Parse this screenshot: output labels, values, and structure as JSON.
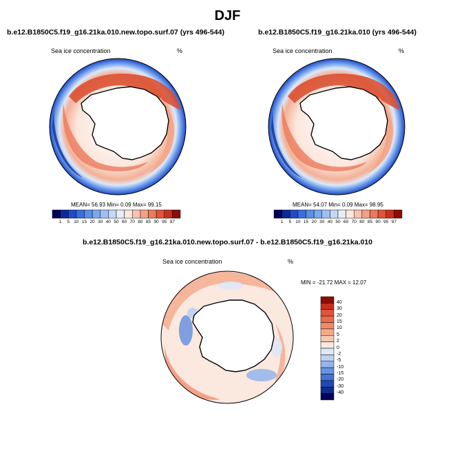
{
  "page": {
    "title": "DJF"
  },
  "panels": [
    {
      "title": "b.e12.B1850C5.f19_g16.21ka.010.new.topo.surf.07 (yrs 496-544)",
      "variable": "Sea ice concentration",
      "units": "%",
      "stats_text": "MEAN=  56.93  Min=   0.09  Max=  99.15"
    },
    {
      "title": "b.e12.B1850C5.f19_g16.21ka.010 (yrs 496-544)",
      "variable": "Sea ice concentration",
      "units": "%",
      "stats_text": "MEAN=  54.07  Min=   0.09  Max=  98.95"
    },
    {
      "title": "b.e12.B1850C5.f19_g16.21ka.010.new.topo.surf.07 - b.e12.B1850C5.f19_g16.21ka.010",
      "variable": "Sea ice concentration",
      "units": "%",
      "stats_text": "MIN = -21.72 MAX =  12.07"
    }
  ],
  "colorbar_abs": {
    "labels": [
      "1",
      "5",
      "10",
      "15",
      "20",
      "30",
      "40",
      "50",
      "60",
      "70",
      "80",
      "85",
      "90",
      "95",
      "97"
    ],
    "colors": [
      "#00005a",
      "#0b2a9a",
      "#1f4bc8",
      "#3a6ee0",
      "#5a8ee8",
      "#7aa8ee",
      "#9dc0f2",
      "#c4d8f6",
      "#e8eef8",
      "#fbe8de",
      "#f7c4ad",
      "#f2a184",
      "#ec7a5c",
      "#e0543a",
      "#c8301e",
      "#8e0b06"
    ]
  },
  "colorbar_diff": {
    "labels": [
      "40",
      "30",
      "20",
      "15",
      "10",
      "5",
      "2",
      "0",
      "-2",
      "-5",
      "-10",
      "-15",
      "-20",
      "-30",
      "-40"
    ],
    "colors": [
      "#8e0b06",
      "#c8301e",
      "#e0543a",
      "#ec6a48",
      "#f08a68",
      "#f4a98a",
      "#f8c8b0",
      "#fbe8de",
      "#dde8f8",
      "#bcd2f2",
      "#93b4ec",
      "#6a92e2",
      "#4672d6",
      "#2248b4",
      "#102c8c",
      "#00005a"
    ]
  }
}
